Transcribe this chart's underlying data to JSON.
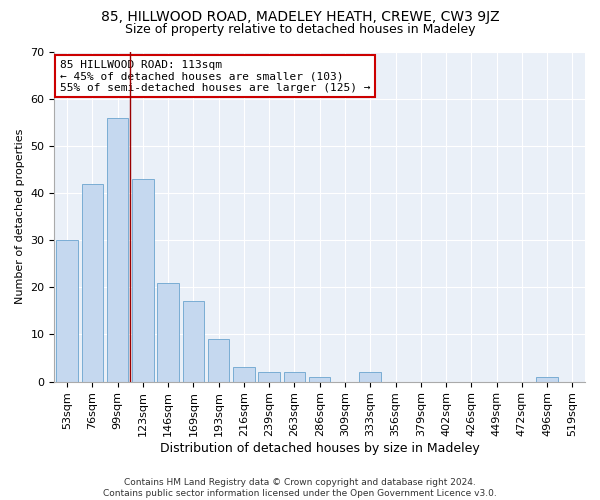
{
  "title": "85, HILLWOOD ROAD, MADELEY HEATH, CREWE, CW3 9JZ",
  "subtitle": "Size of property relative to detached houses in Madeley",
  "xlabel": "Distribution of detached houses by size in Madeley",
  "ylabel": "Number of detached properties",
  "categories": [
    "53sqm",
    "76sqm",
    "99sqm",
    "123sqm",
    "146sqm",
    "169sqm",
    "193sqm",
    "216sqm",
    "239sqm",
    "263sqm",
    "286sqm",
    "309sqm",
    "333sqm",
    "356sqm",
    "379sqm",
    "402sqm",
    "426sqm",
    "449sqm",
    "472sqm",
    "496sqm",
    "519sqm"
  ],
  "values": [
    30,
    42,
    56,
    43,
    21,
    17,
    9,
    3,
    2,
    2,
    1,
    0,
    2,
    0,
    0,
    0,
    0,
    0,
    0,
    1,
    0
  ],
  "bar_color": "#c5d8ef",
  "bar_edge_color": "#7aadd4",
  "vline_color": "#990000",
  "annotation_text": "85 HILLWOOD ROAD: 113sqm\n← 45% of detached houses are smaller (103)\n55% of semi-detached houses are larger (125) →",
  "annotation_box_color": "#ffffff",
  "annotation_box_edge_color": "#cc0000",
  "ylim": [
    0,
    70
  ],
  "yticks": [
    0,
    10,
    20,
    30,
    40,
    50,
    60,
    70
  ],
  "background_color": "#eaf0f8",
  "footer_text": "Contains HM Land Registry data © Crown copyright and database right 2024.\nContains public sector information licensed under the Open Government Licence v3.0.",
  "title_fontsize": 10,
  "subtitle_fontsize": 9,
  "xlabel_fontsize": 9,
  "ylabel_fontsize": 8,
  "tick_fontsize": 8,
  "annotation_fontsize": 8,
  "footer_fontsize": 6.5
}
